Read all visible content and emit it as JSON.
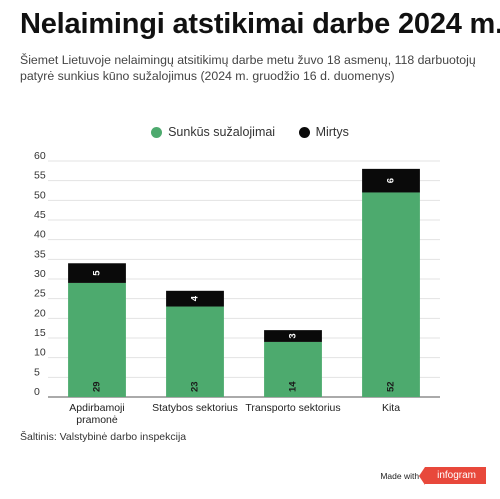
{
  "title": "Nelaimingi atstikimai darbe 2024 m.",
  "subtitle": "Šiemet Lietuvoje nelaimingų atsitikimų darbe metu žuvo 18 asmenų, 118 darbuotojų patyrė sunkius kūno sužalojimus (2024 m. gruodžio 16 d. duomenys)",
  "source": "Šaltinis: Valstybinė darbo inspekcija",
  "footer": {
    "made_with": "Made with",
    "brand": "infogram"
  },
  "chart_data": {
    "type": "bar",
    "stacked": true,
    "categories": [
      [
        "Apdirbamoji",
        "pramonė"
      ],
      [
        "Statybos sektorius"
      ],
      [
        "Transporto sektorius"
      ],
      [
        "Kita"
      ]
    ],
    "series": [
      {
        "name": "Sunkūs sužalojimai",
        "color": "#4daa6e",
        "values": [
          29,
          23,
          14,
          52
        ]
      },
      {
        "name": "Mirtys",
        "color": "#0a0a0a",
        "values": [
          5,
          4,
          3,
          6
        ]
      }
    ],
    "ylim": [
      0,
      60
    ],
    "yticks": [
      0,
      5,
      10,
      15,
      20,
      25,
      30,
      35,
      40,
      45,
      50,
      55,
      60
    ],
    "grid": true,
    "legend": "top-center",
    "xlabel": "",
    "ylabel": ""
  }
}
